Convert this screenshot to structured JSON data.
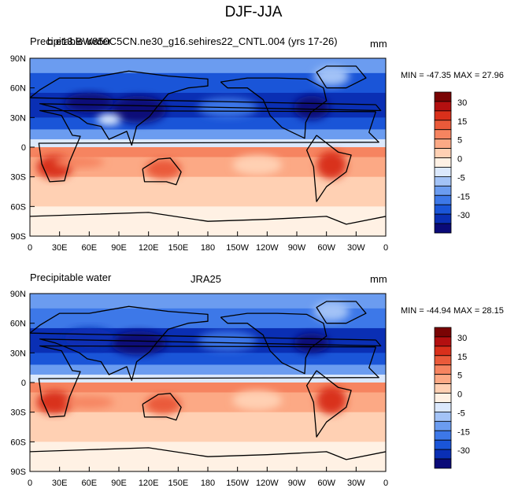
{
  "page_title": "DJF-JJA",
  "colorbar": {
    "colors": [
      "#0a0a78",
      "#0a2fb4",
      "#1a55d8",
      "#3d78e8",
      "#6b9cf0",
      "#a3c3f7",
      "#dbe8fc",
      "#fff1e4",
      "#ffd0b3",
      "#fca985",
      "#f68460",
      "#ea5a3a",
      "#d9301b",
      "#b31010",
      "#7a0404"
    ],
    "tick_labels": [
      "30",
      "15",
      "5",
      "0",
      "-5",
      "-15",
      "-30"
    ]
  },
  "chart_data": [
    {
      "type": "heatmap",
      "title": "Precipitable water",
      "subtitle": "b.e13.BW850C5CN.ne30_g16.sehires22_CNTL.004 (yrs 17-26)",
      "units": "mm",
      "stats": {
        "text": "MIN = -47.35 MAX =  27.96",
        "min": -47.35,
        "max": 27.96
      },
      "x_ticks": [
        "0",
        "30E",
        "60E",
        "90E",
        "120E",
        "150E",
        "180",
        "150W",
        "120W",
        "90W",
        "60W",
        "30W",
        "0"
      ],
      "y_ticks": [
        "90N",
        "60N",
        "30N",
        "0",
        "30S",
        "60S",
        "90S"
      ],
      "xlim": [
        0,
        360
      ],
      "ylim": [
        -90,
        90
      ],
      "lat_bands": [
        {
          "lat": [
            75,
            90
          ],
          "value": -10
        },
        {
          "lat": [
            55,
            75
          ],
          "value": -20
        },
        {
          "lat": [
            30,
            55
          ],
          "value": -28
        },
        {
          "lat": [
            18,
            30
          ],
          "value": -22
        },
        {
          "lat": [
            8,
            18
          ],
          "value": -12
        },
        {
          "lat": [
            0,
            8
          ],
          "value": -3
        },
        {
          "lat": [
            -10,
            0
          ],
          "value": 12
        },
        {
          "lat": [
            -30,
            -10
          ],
          "value": 9
        },
        {
          "lat": [
            -45,
            -30
          ],
          "value": 5
        },
        {
          "lat": [
            -60,
            -45
          ],
          "value": 3
        },
        {
          "lat": [
            -90,
            -60
          ],
          "value": 1
        }
      ],
      "anomalies": [
        {
          "lon": 110,
          "lat": 38,
          "rx": 28,
          "ry": 14,
          "value": -38
        },
        {
          "lon": 285,
          "lat": 40,
          "rx": 18,
          "ry": 12,
          "value": -33
        },
        {
          "lon": 60,
          "lat": 45,
          "rx": 25,
          "ry": 10,
          "value": -30
        },
        {
          "lon": 200,
          "lat": 40,
          "rx": 30,
          "ry": 10,
          "value": -18
        },
        {
          "lon": 305,
          "lat": 72,
          "rx": 18,
          "ry": 10,
          "value": -8
        },
        {
          "lon": 80,
          "lat": 28,
          "rx": 12,
          "ry": 6,
          "value": -3
        },
        {
          "lon": 25,
          "lat": -20,
          "rx": 18,
          "ry": 12,
          "value": 22
        },
        {
          "lon": 135,
          "lat": -22,
          "rx": 18,
          "ry": 10,
          "value": 20
        },
        {
          "lon": 305,
          "lat": -18,
          "rx": 15,
          "ry": 14,
          "value": 24
        },
        {
          "lon": 50,
          "lat": -15,
          "rx": 25,
          "ry": 6,
          "value": 14
        },
        {
          "lon": 230,
          "lat": -18,
          "rx": 25,
          "ry": 10,
          "value": 4
        }
      ]
    },
    {
      "type": "heatmap",
      "title": "Precipitable water",
      "subtitle": "JRA25",
      "units": "mm",
      "stats": {
        "text": "MIN = -44.94 MAX =  28.15",
        "min": -44.94,
        "max": 28.15
      },
      "x_ticks": [
        "0",
        "30E",
        "60E",
        "90E",
        "120E",
        "150E",
        "180",
        "150W",
        "120W",
        "90W",
        "60W",
        "30W",
        "0"
      ],
      "y_ticks": [
        "90N",
        "60N",
        "30N",
        "0",
        "30S",
        "60S",
        "90S"
      ],
      "xlim": [
        0,
        360
      ],
      "ylim": [
        -90,
        90
      ],
      "lat_bands": [
        {
          "lat": [
            75,
            90
          ],
          "value": -10
        },
        {
          "lat": [
            55,
            75
          ],
          "value": -18
        },
        {
          "lat": [
            30,
            55
          ],
          "value": -27
        },
        {
          "lat": [
            18,
            30
          ],
          "value": -20
        },
        {
          "lat": [
            8,
            18
          ],
          "value": -12
        },
        {
          "lat": [
            0,
            8
          ],
          "value": -4
        },
        {
          "lat": [
            -10,
            0
          ],
          "value": 13
        },
        {
          "lat": [
            -30,
            -10
          ],
          "value": 8
        },
        {
          "lat": [
            -45,
            -30
          ],
          "value": 5
        },
        {
          "lat": [
            -60,
            -45
          ],
          "value": 3
        },
        {
          "lat": [
            -90,
            -60
          ],
          "value": 1
        }
      ],
      "anomalies": [
        {
          "lon": 110,
          "lat": 40,
          "rx": 28,
          "ry": 12,
          "value": -36
        },
        {
          "lon": 285,
          "lat": 40,
          "rx": 18,
          "ry": 10,
          "value": -31
        },
        {
          "lon": 60,
          "lat": 45,
          "rx": 25,
          "ry": 10,
          "value": -28
        },
        {
          "lon": 200,
          "lat": 42,
          "rx": 30,
          "ry": 10,
          "value": -17
        },
        {
          "lon": 305,
          "lat": 72,
          "rx": 18,
          "ry": 10,
          "value": -8
        },
        {
          "lon": 25,
          "lat": -20,
          "rx": 18,
          "ry": 12,
          "value": 22
        },
        {
          "lon": 135,
          "lat": -22,
          "rx": 18,
          "ry": 10,
          "value": 20
        },
        {
          "lon": 305,
          "lat": -18,
          "rx": 15,
          "ry": 14,
          "value": 22
        },
        {
          "lon": 60,
          "lat": -20,
          "rx": 25,
          "ry": 6,
          "value": 13
        },
        {
          "lon": 230,
          "lat": -18,
          "rx": 25,
          "ry": 10,
          "value": 4
        }
      ]
    }
  ]
}
